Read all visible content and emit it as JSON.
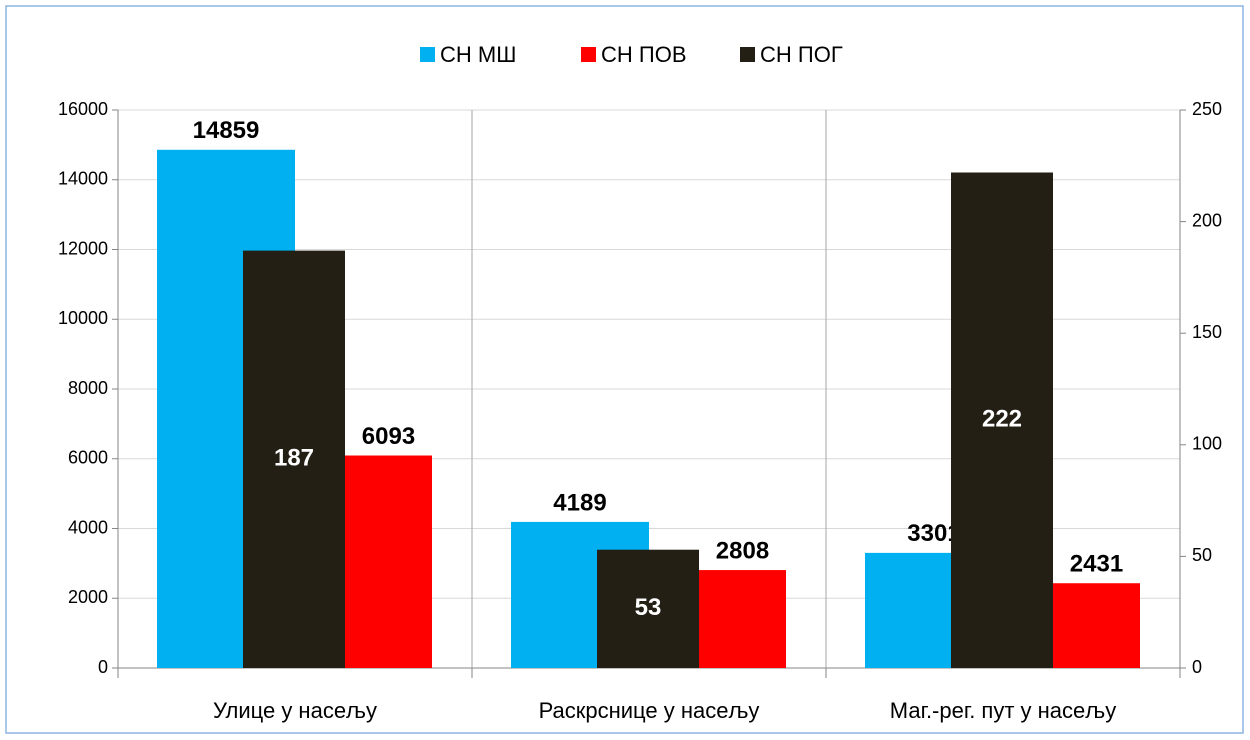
{
  "chart_data": {
    "type": "bar",
    "categories": [
      "Улице у насељу",
      "Раскрснице у насељу",
      "Маг.-рег. пут у насељу"
    ],
    "series": [
      {
        "name": "СН МШ",
        "color": "#00b0f0",
        "values": [
          14859,
          4189,
          3301
        ]
      },
      {
        "name": "СН ПОВ",
        "color": "#ff0000",
        "values": [
          6093,
          2808,
          2431
        ]
      },
      {
        "name": "СН ПОГ",
        "color": "#231f14",
        "values": [
          187,
          53,
          222
        ],
        "axis": "y2"
      }
    ],
    "ylim": [
      0,
      16000
    ],
    "yticks": [
      0,
      2000,
      4000,
      6000,
      8000,
      10000,
      12000,
      14000,
      16000
    ],
    "y2lim": [
      0,
      250
    ],
    "y2ticks": [
      0,
      50,
      100,
      150,
      200,
      250
    ],
    "grid": true,
    "legend": "top"
  }
}
